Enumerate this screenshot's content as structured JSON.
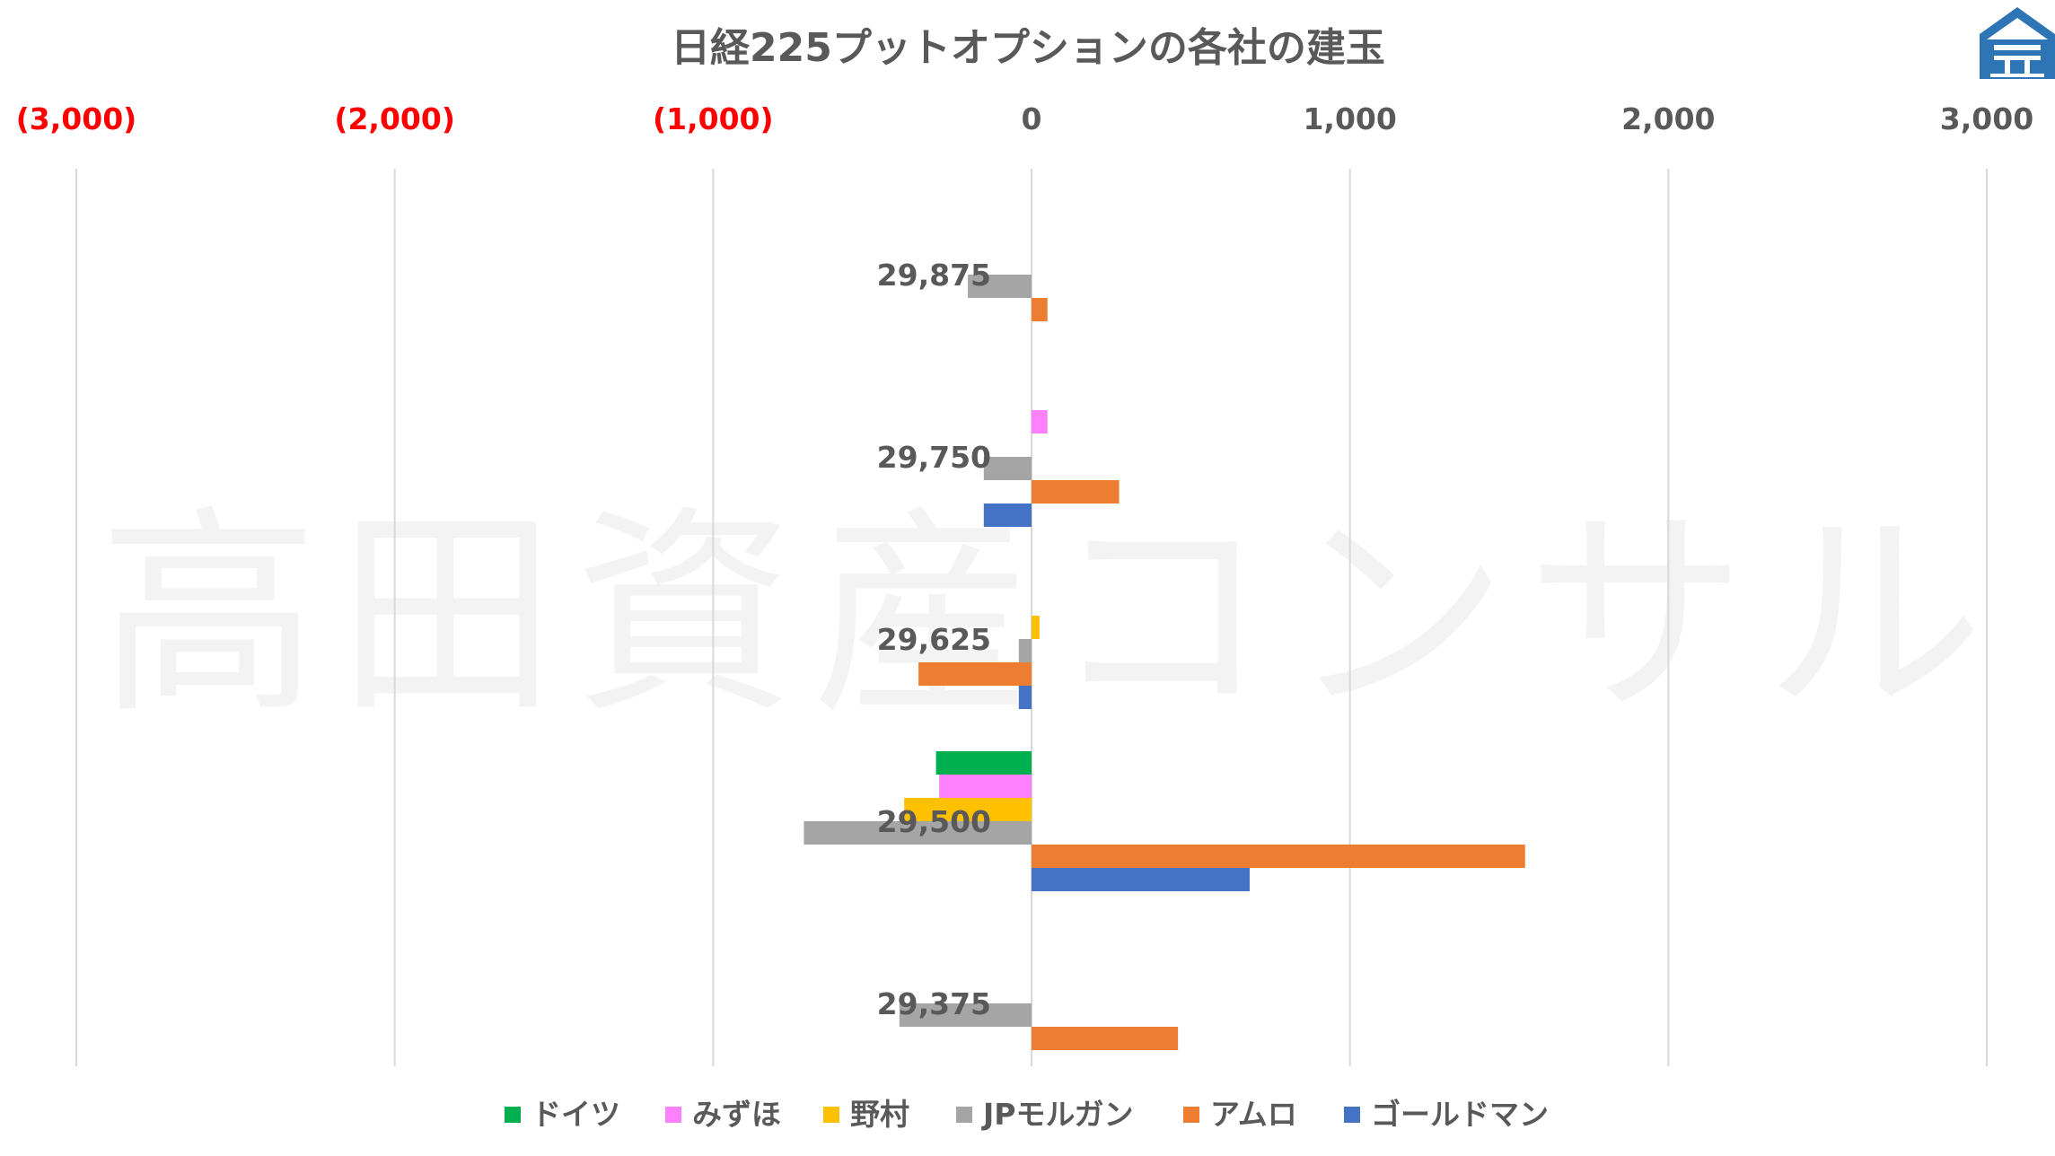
{
  "chart_data": {
    "type": "bar",
    "orientation": "horizontal",
    "title": "日経225プットオプションの各社の建玉",
    "watermark": "高田資産コンサル",
    "xlim": [
      -3000,
      3000
    ],
    "xticks": [
      {
        "value": -3000,
        "label": "(3,000)",
        "color": "#ff0000"
      },
      {
        "value": -2000,
        "label": "(2,000)",
        "color": "#ff0000"
      },
      {
        "value": -1000,
        "label": "(1,000)",
        "color": "#ff0000"
      },
      {
        "value": 0,
        "label": "0",
        "color": "#595959"
      },
      {
        "value": 1000,
        "label": "1,000",
        "color": "#595959"
      },
      {
        "value": 2000,
        "label": "2,000",
        "color": "#595959"
      },
      {
        "value": 3000,
        "label": "3,000",
        "color": "#595959"
      }
    ],
    "grid": true,
    "legend_position": "bottom",
    "categories": [
      "29,875",
      "29,750",
      "29,625",
      "29,500",
      "29,375"
    ],
    "series": [
      {
        "name": "ドイツ",
        "color": "#00b050",
        "values": [
          0,
          0,
          0,
          -300,
          0
        ]
      },
      {
        "name": "みずほ",
        "color": "#ff80ff",
        "values": [
          0,
          50,
          0,
          -290,
          0
        ]
      },
      {
        "name": "野村",
        "color": "#ffc000",
        "values": [
          0,
          0,
          25,
          -400,
          0
        ]
      },
      {
        "name": "JPモルガン",
        "color": "#a5a5a5",
        "values": [
          -200,
          -150,
          -40,
          -715,
          -415
        ]
      },
      {
        "name": "アムロ",
        "color": "#ed7d31",
        "values": [
          50,
          275,
          -355,
          1550,
          460
        ]
      },
      {
        "name": "ゴールドマン",
        "color": "#4472c4",
        "values": [
          0,
          -150,
          -40,
          685,
          0
        ]
      }
    ]
  },
  "logo": {
    "name": "takata-logo",
    "color": "#2e75b6"
  }
}
